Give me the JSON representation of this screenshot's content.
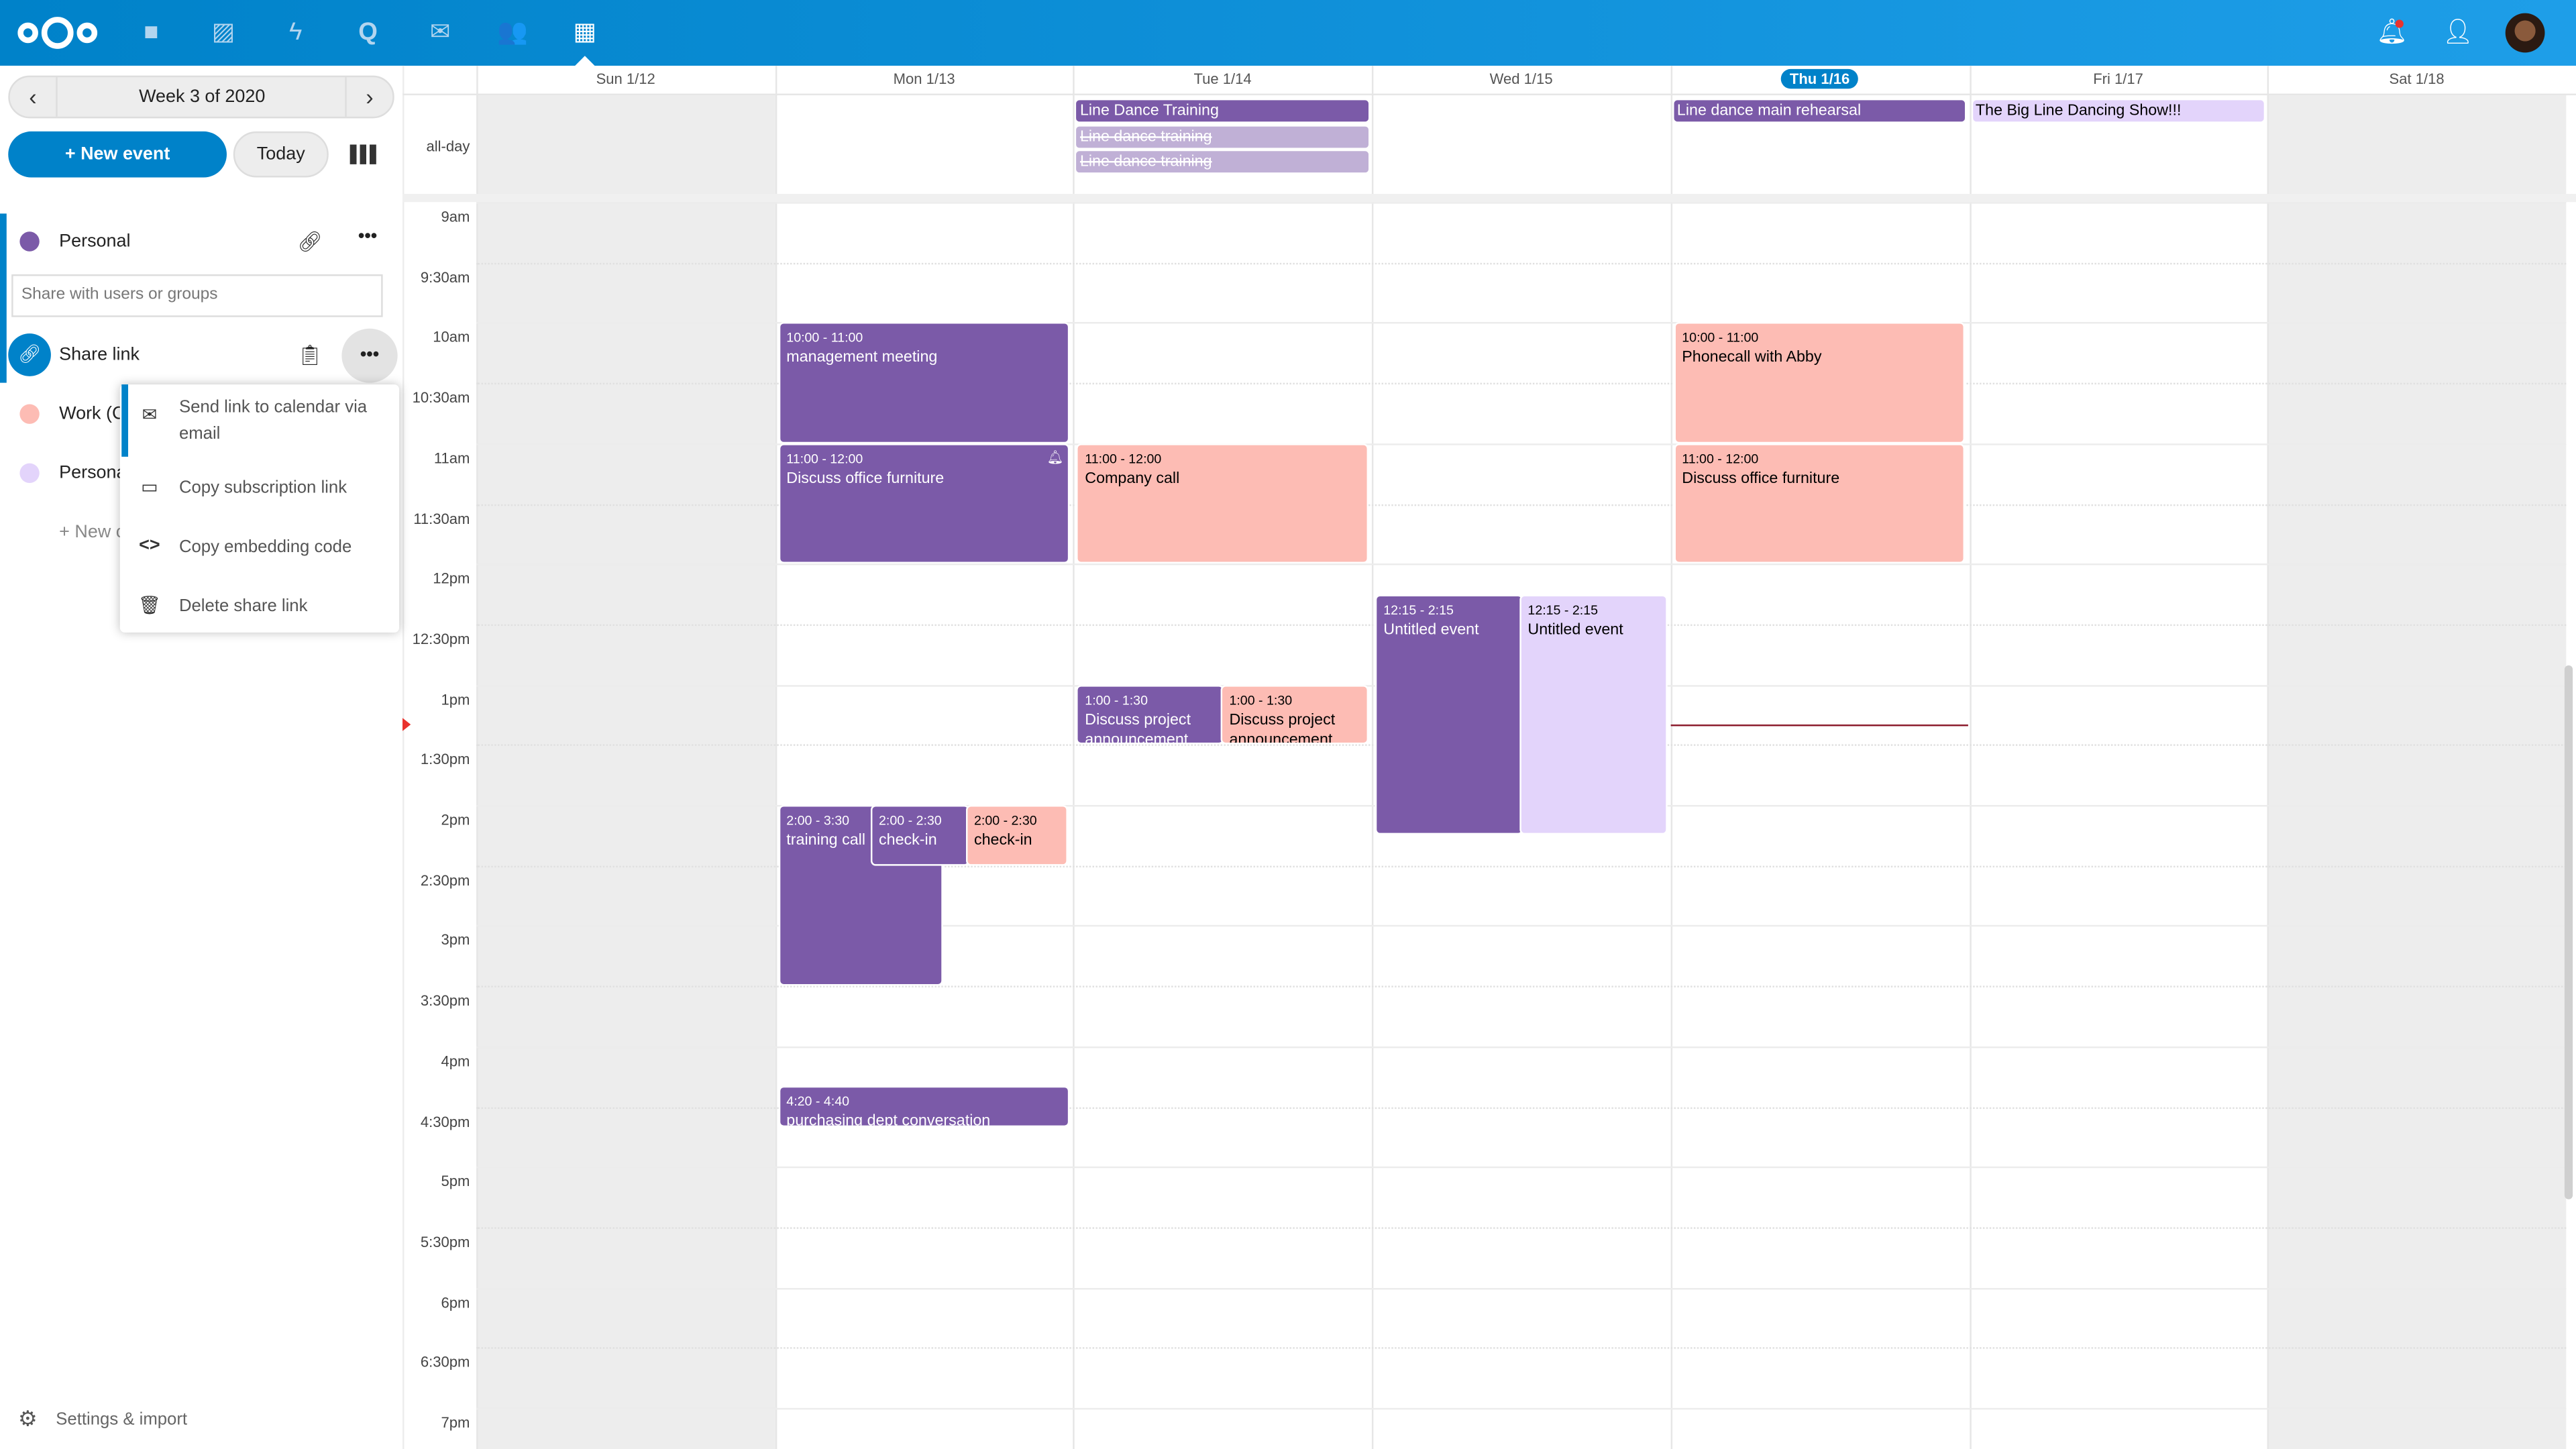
{
  "topbar": {
    "apps": [
      "files-icon",
      "photos-icon",
      "activity-icon",
      "talk-icon",
      "mail-icon",
      "contacts-icon",
      "calendar-icon"
    ],
    "active_app": "calendar-icon"
  },
  "sidebar": {
    "week_label": "Week 3 of 2020",
    "new_event": "+ New event",
    "today": "Today",
    "calendars": [
      {
        "name": "Personal",
        "color": "#7b5aa8"
      },
      {
        "name": "Work (C",
        "color": "#fdbcb4"
      },
      {
        "name": "Persona",
        "color": "#e3d4fb"
      }
    ],
    "share_placeholder": "Share with users or groups",
    "share_link": "Share link",
    "new_calendar": "+ New c",
    "settings": "Settings & import",
    "menu": [
      "Send link to calendar via email",
      "Copy subscription link",
      "Copy embedding code",
      "Delete share link"
    ]
  },
  "colors": {
    "accent": "#0082c9",
    "purple": "#7b5aa8",
    "pink": "#fdbcb4",
    "lavender": "#e3d4fb",
    "faded": "#c0b0d6",
    "now": "#e9322d"
  },
  "calendar": {
    "days": [
      "Sun 1/12",
      "Mon 1/13",
      "Tue 1/14",
      "Wed 1/15",
      "Thu 1/16",
      "Fri 1/17",
      "Sat 1/18"
    ],
    "today_index": 4,
    "allday_label": "all-day",
    "now": "13:20",
    "hours": [
      "9am",
      "9:30am",
      "10am",
      "10:30am",
      "11am",
      "11:30am",
      "12pm",
      "12:30pm",
      "1pm",
      "1:30pm",
      "2pm",
      "2:30pm",
      "3pm",
      "3:30pm",
      "4pm",
      "4:30pm",
      "5pm",
      "5:30pm",
      "6pm",
      "6:30pm",
      "7pm"
    ],
    "allday": [
      {
        "day": 2,
        "title": "Line Dance Training",
        "color": "purple",
        "cancelled": false
      },
      {
        "day": 2,
        "title": "Line dance training",
        "color": "faded",
        "cancelled": true
      },
      {
        "day": 2,
        "title": "Line dance training",
        "color": "faded",
        "cancelled": true
      },
      {
        "day": 4,
        "title": "Line dance main rehearsal",
        "color": "purple",
        "cancelled": false
      },
      {
        "day": 5,
        "title": "The Big Line Dancing Show!!!",
        "color": "lavender",
        "cancelled": false
      }
    ],
    "events": [
      {
        "day": 1,
        "start": "10:00",
        "end": "11:00",
        "time": "10:00 - 11:00",
        "title": "management meeting",
        "color": "purple"
      },
      {
        "day": 1,
        "start": "11:00",
        "end": "12:00",
        "time": "11:00 - 12:00",
        "title": "Discuss office furniture",
        "color": "purple",
        "alarm": true
      },
      {
        "day": 1,
        "start": "14:00",
        "end": "15:30",
        "time": "2:00 - 3:30",
        "title": "training call",
        "color": "purple"
      },
      {
        "day": 1,
        "start": "14:00",
        "end": "14:30",
        "time": "2:00 - 2:30",
        "title": "check-in",
        "color": "purple"
      },
      {
        "day": 1,
        "start": "14:00",
        "end": "14:30",
        "time": "2:00 - 2:30",
        "title": "check-in",
        "color": "pink"
      },
      {
        "day": 1,
        "start": "16:20",
        "end": "16:40",
        "time": "4:20 - 4:40",
        "title": "purchasing dept conversation",
        "color": "purple"
      },
      {
        "day": 2,
        "start": "11:00",
        "end": "12:00",
        "time": "11:00 - 12:00",
        "title": "Company call",
        "color": "pink"
      },
      {
        "day": 2,
        "start": "13:00",
        "end": "13:30",
        "time": "1:00 - 1:30",
        "title": "Discuss project announcement",
        "color": "purple"
      },
      {
        "day": 2,
        "start": "13:00",
        "end": "13:30",
        "time": "1:00 - 1:30",
        "title": "Discuss project announcement",
        "color": "pink"
      },
      {
        "day": 3,
        "start": "12:15",
        "end": "14:15",
        "time": "12:15 - 2:15",
        "title": "Untitled event",
        "color": "purple"
      },
      {
        "day": 3,
        "start": "12:15",
        "end": "14:15",
        "time": "12:15 - 2:15",
        "title": "Untitled event",
        "color": "lavender"
      },
      {
        "day": 4,
        "start": "10:00",
        "end": "11:00",
        "time": "10:00 - 11:00",
        "title": "Phonecall with Abby",
        "color": "pink"
      },
      {
        "day": 4,
        "start": "11:00",
        "end": "12:00",
        "time": "11:00 - 12:00",
        "title": "Discuss office furniture",
        "color": "pink"
      }
    ]
  }
}
